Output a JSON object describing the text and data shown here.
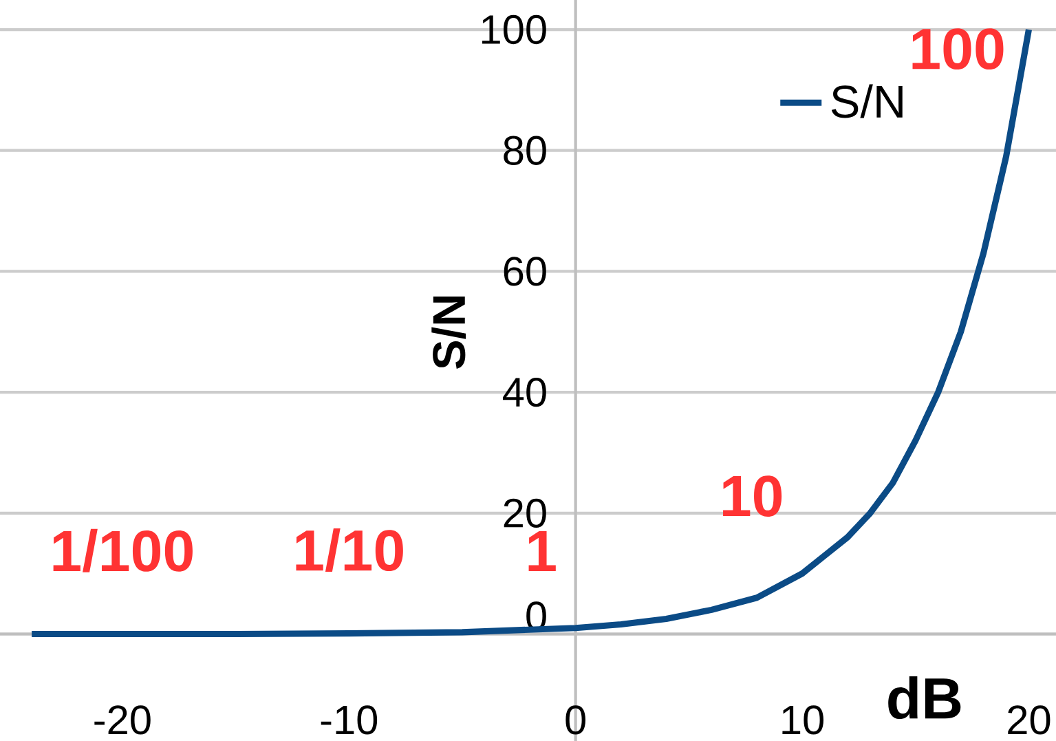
{
  "chart_data": {
    "type": "line",
    "xlabel": "dB",
    "ylabel": "S/N",
    "x": [
      -24,
      -20,
      -15,
      -10,
      -5,
      0,
      2,
      4,
      6,
      8,
      10,
      11,
      12,
      13,
      14,
      15,
      16,
      17,
      18,
      19,
      20
    ],
    "series": [
      {
        "name": "S/N",
        "color": "#0b4b86",
        "values": [
          0,
          0,
          0,
          0.1,
          0.3,
          1,
          1.6,
          2.5,
          4,
          6,
          10,
          13,
          16,
          20,
          25,
          32,
          40,
          50,
          63,
          79,
          100
        ]
      }
    ],
    "xlim": [
      -25.4,
      21.2
    ],
    "ylim": [
      -17.7,
      104.9
    ],
    "xticks": [
      -20,
      -10,
      0,
      10,
      20
    ],
    "yticks": [
      0,
      20,
      40,
      60,
      80,
      100
    ],
    "grid": "y",
    "legend": "top right",
    "marker": "none",
    "line_style": "solid",
    "annotations": [
      {
        "text": "1/100",
        "x": -20,
        "y": 0.01
      },
      {
        "text": "1/10",
        "x": -10,
        "y": 0.1
      },
      {
        "text": "1",
        "x": 0,
        "y": 1
      },
      {
        "text": "10",
        "x": 10,
        "y": 10
      },
      {
        "text": "100",
        "x": 20,
        "y": 100
      }
    ]
  }
}
